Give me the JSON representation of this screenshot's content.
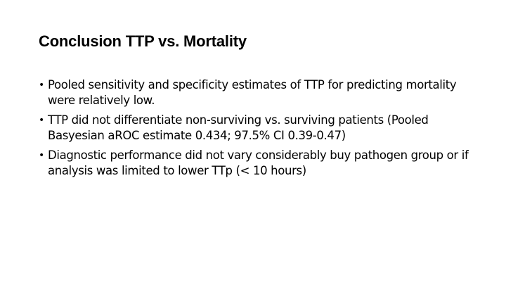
{
  "slide": {
    "title": "Conclusion TTP vs. Mortality",
    "bullets": [
      "Pooled sensitivity and specificity estimates of TTP for predicting mortality were relatively low.",
      "TTP did not differentiate non-surviving vs. surviving patients (Pooled Basyesian aROC estimate 0.434; 97.5% CI 0.39-0.47)",
      "Diagnostic performance did not vary considerably buy pathogen group or if analysis was limited to lower TTp (< 10 hours)"
    ]
  }
}
